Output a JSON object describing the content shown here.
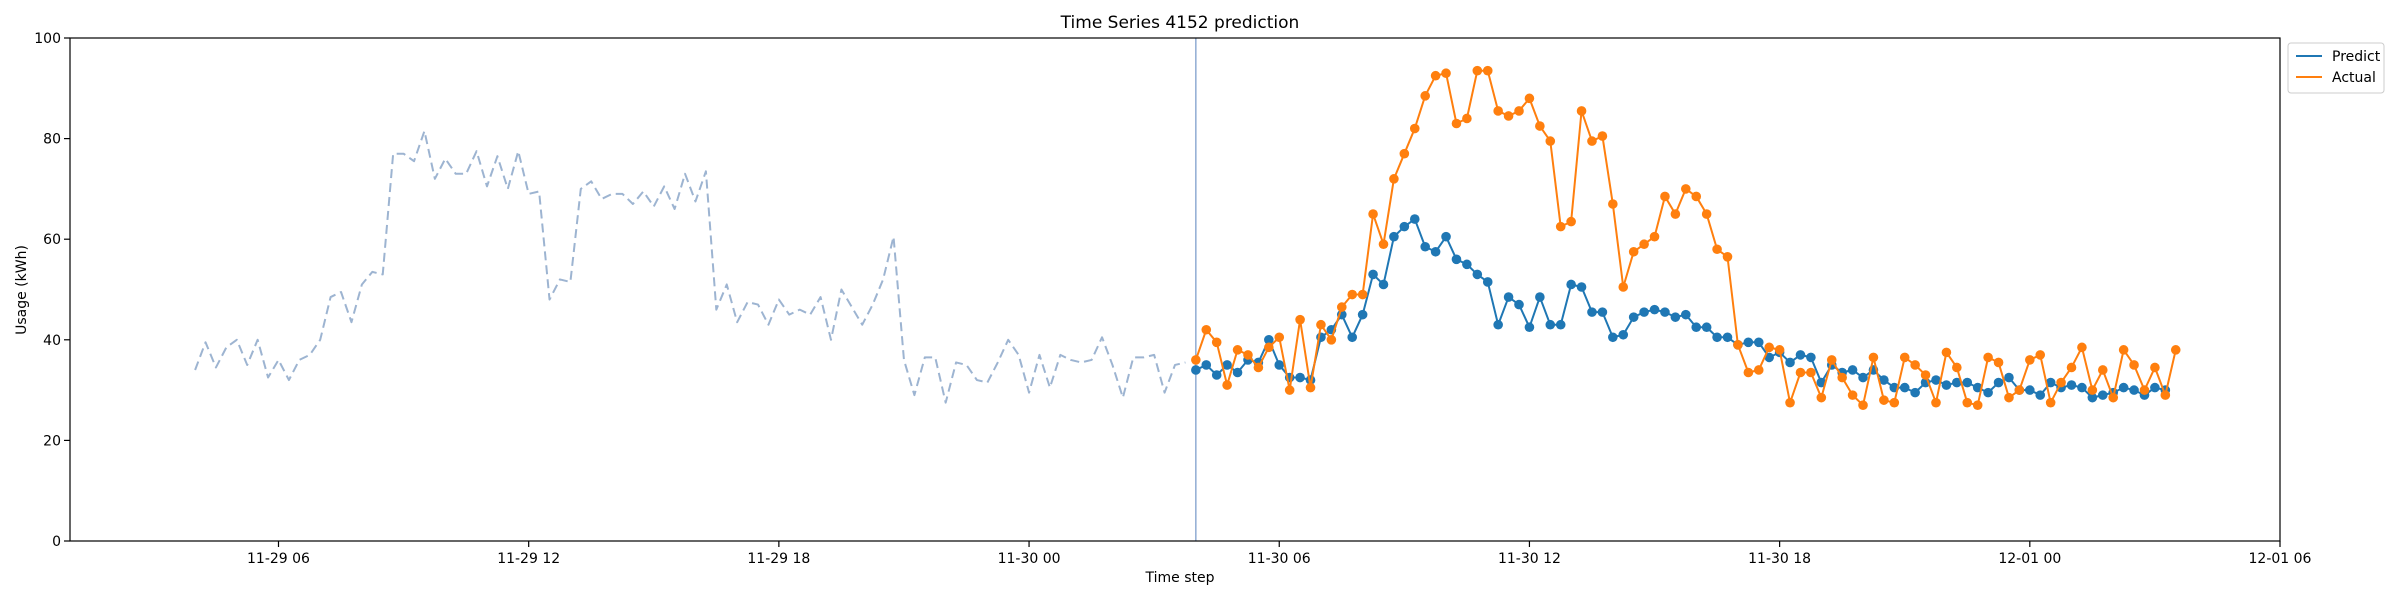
{
  "chart_data": {
    "type": "line",
    "title": "Time Series 4152 prediction",
    "xlabel": "Time step",
    "ylabel": "Usage (kWh)",
    "xlim": [
      "2021-11-29 01:00",
      "2021-12-01 06:00"
    ],
    "ylim": [
      0,
      100
    ],
    "yticks": [
      0,
      20,
      40,
      60,
      80,
      100
    ],
    "xticks": [
      {
        "t": "2021-11-29 06:00",
        "label": "11-29 06"
      },
      {
        "t": "2021-11-29 12:00",
        "label": "11-29 12"
      },
      {
        "t": "2021-11-29 18:00",
        "label": "11-29 18"
      },
      {
        "t": "2021-11-30 00:00",
        "label": "11-30 00"
      },
      {
        "t": "2021-11-30 06:00",
        "label": "11-30 06"
      },
      {
        "t": "2021-11-30 12:00",
        "label": "11-30 12"
      },
      {
        "t": "2021-11-30 18:00",
        "label": "11-30 18"
      },
      {
        "t": "2021-12-01 00:00",
        "label": "12-01 00"
      },
      {
        "t": "2021-12-01 06:00",
        "label": "12-01 06"
      }
    ],
    "grid": false,
    "legend_position": "outside top-right",
    "forecast_start": "2021-11-30 04:00",
    "series": [
      {
        "name": "",
        "style": "dashed",
        "color": "#9db4d1",
        "start": "2021-11-29 04:00",
        "step_minutes": 15,
        "values": [
          34,
          39.5,
          34.5,
          38.5,
          40,
          35,
          40,
          32.5,
          36,
          32,
          36,
          37,
          40,
          48.5,
          49.5,
          43.5,
          51,
          53.5,
          53,
          77,
          77,
          75.5,
          81.5,
          72,
          76,
          73,
          73,
          77.5,
          70.5,
          76.5,
          70,
          77.5,
          69,
          69.5,
          48,
          52,
          51.5,
          70,
          71.5,
          68,
          69,
          69,
          67,
          69.5,
          66.5,
          70.5,
          66,
          73,
          67.5,
          73.5,
          46,
          51,
          43.5,
          47.5,
          47,
          43,
          48,
          45,
          46,
          45,
          48.5,
          40,
          50,
          46.5,
          43,
          47,
          52,
          60.5,
          36,
          29,
          36.5,
          36.5,
          27.5,
          35.5,
          35,
          32,
          31.5,
          35.5,
          40,
          37,
          29.5,
          37,
          30.5,
          37,
          36,
          35.5,
          36,
          40.5,
          35,
          28.5,
          36.5,
          36.5,
          37,
          29.5,
          35,
          35.5
        ]
      },
      {
        "name": "Predict",
        "style": "solid-markers",
        "color": "#1f77b4",
        "start": "2021-11-30 04:00",
        "step_minutes": 15,
        "values": [
          34,
          35,
          33,
          35,
          33.5,
          36,
          35.5,
          40,
          35,
          32.5,
          32.5,
          32,
          40.5,
          42,
          45,
          40.5,
          45,
          53,
          51,
          60.5,
          62.5,
          64,
          58.5,
          57.5,
          60.5,
          56,
          55,
          53,
          51.5,
          43,
          48.5,
          47,
          42.5,
          48.5,
          43,
          43,
          51,
          50.5,
          45.5,
          45.5,
          40.5,
          41,
          44.5,
          45.5,
          46,
          45.5,
          44.5,
          45,
          42.5,
          42.5,
          40.5,
          40.5,
          39,
          39.5,
          39.5,
          36.5,
          37.5,
          35.5,
          37,
          36.5,
          31.5,
          35,
          33.5,
          34,
          32.5,
          34,
          32,
          30.5,
          30.5,
          29.5,
          31.5,
          32,
          31,
          31.5,
          31.5,
          30.5,
          29.5,
          31.5,
          32.5,
          30,
          30,
          29,
          31.5,
          30.5,
          31,
          30.5,
          28.5,
          29,
          29.5,
          30.5,
          30,
          29,
          30.5,
          30
        ]
      },
      {
        "name": "Actual",
        "style": "solid-markers",
        "color": "#ff7f0e",
        "start": "2021-11-30 04:00",
        "step_minutes": 15,
        "values": [
          36,
          42,
          39.5,
          31,
          38,
          37,
          34.5,
          38.5,
          40.5,
          30,
          44,
          30.5,
          43,
          40,
          46.5,
          49,
          49,
          65,
          59,
          72,
          77,
          82,
          88.5,
          92.5,
          93,
          83,
          84,
          93.5,
          93.5,
          85.5,
          84.5,
          85.5,
          88,
          82.5,
          79.5,
          62.5,
          63.5,
          85.5,
          79.5,
          80.5,
          67,
          50.5,
          57.5,
          59,
          60.5,
          68.5,
          65,
          70,
          68.5,
          65,
          58,
          56.5,
          39,
          33.5,
          34,
          38.5,
          38,
          27.5,
          33.5,
          33.5,
          28.5,
          36,
          32.5,
          29,
          27,
          36.5,
          28,
          27.5,
          36.5,
          35,
          33,
          27.5,
          37.5,
          34.5,
          27.5,
          27,
          36.5,
          35.5,
          28.5,
          30,
          36,
          37,
          27.5,
          31.5,
          34.5,
          38.5,
          30,
          34,
          28.5,
          38,
          35,
          30,
          34.5,
          29,
          38
        ]
      }
    ]
  }
}
